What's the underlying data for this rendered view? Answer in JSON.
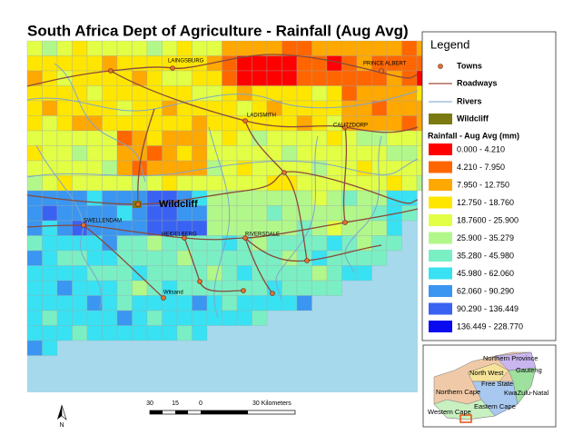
{
  "title": "South Africa Dept of Agriculture - Rainfall (Aug Avg)",
  "legend": {
    "title": "Legend",
    "items": [
      {
        "label": "Towns",
        "color": "#e07030"
      },
      {
        "label": "Roadways",
        "color": "#a04a3a"
      },
      {
        "label": "Rivers",
        "color": "#8fb4d8"
      },
      {
        "label": "Wildcliff",
        "color": "#7a7a10"
      }
    ],
    "classes_title": "Rainfall - Aug Avg (mm)",
    "classes": [
      {
        "label": "0.000 - 4.210",
        "color": "#ff0000"
      },
      {
        "label": "4.210 - 7.950",
        "color": "#ff6600"
      },
      {
        "label": "7.950 - 12.750",
        "color": "#ffa800"
      },
      {
        "label": "12.750 - 18.760",
        "color": "#ffe600"
      },
      {
        "label": "18.7600 - 25.900",
        "color": "#e2ff46"
      },
      {
        "label": "25.900 - 35.279",
        "color": "#b2f78a"
      },
      {
        "label": "35.280 - 45.980",
        "color": "#7aefc4"
      },
      {
        "label": "45.980 - 62.060",
        "color": "#38e2f2"
      },
      {
        "label": "62.060 - 90.290",
        "color": "#3a96f0"
      },
      {
        "label": "90.290 - 136.449",
        "color": "#3a62f2"
      },
      {
        "label": "136.449 - 228.770",
        "color": "#0a0af0"
      }
    ]
  },
  "map_labels": [
    "LAINGSBURG",
    "PRINCE ALBERT",
    "LADISMITH",
    "CALITZDORP",
    "Wildcliff",
    "SWELLENDAM",
    "HEIDELBERG",
    "RIVERSDALE",
    "Witsand"
  ],
  "scale": {
    "labels": [
      "30",
      "15",
      "0",
      "30 Kilometers"
    ]
  },
  "north": "N",
  "inset": {
    "labels": [
      "Northern Province",
      "Gauteng",
      "North West",
      "Free State",
      "KwaZulu-Natal",
      "Northern Cape",
      "Eastern Cape",
      "Western Cape"
    ]
  }
}
